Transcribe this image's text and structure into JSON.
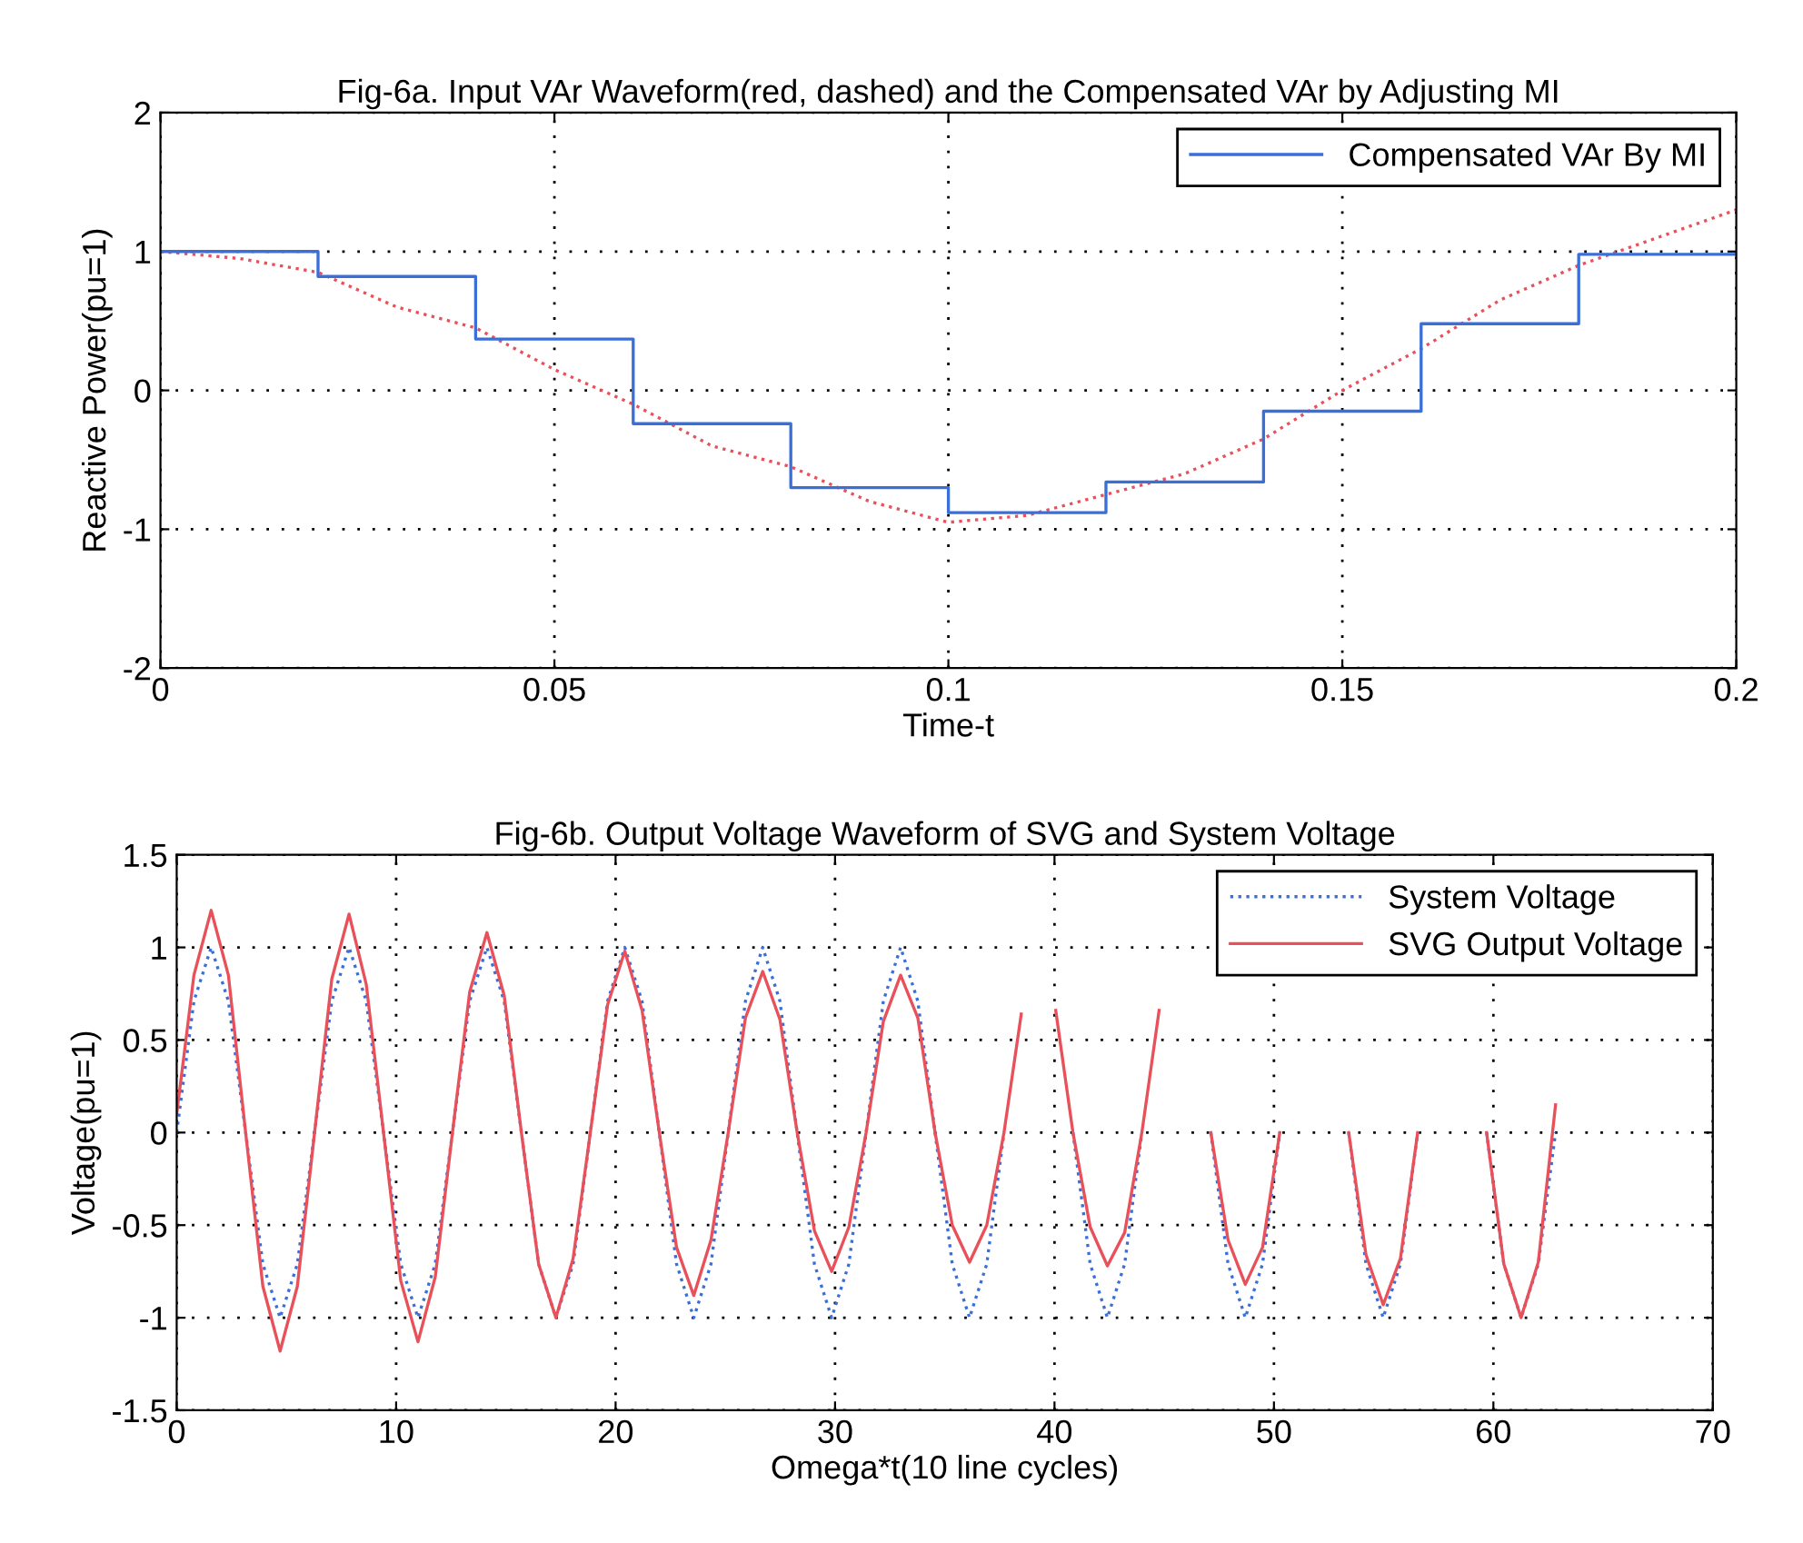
{
  "chart_data": [
    {
      "type": "line",
      "title": "Fig-6a. Input VAr Waveform(red, dashed) and the Compensated VAr by Adjusting MI",
      "xlabel": "Time-t",
      "ylabel": "Reactive Power(pu=1)",
      "xlim": [
        0,
        0.2
      ],
      "xticks": [
        0,
        0.05,
        0.1,
        0.15,
        0.2
      ],
      "ylim": [
        -2,
        2
      ],
      "yticks": [
        -2,
        -1,
        0,
        1,
        2
      ],
      "grid": true,
      "legend": "top right",
      "marker": "none",
      "series": [
        {
          "line_style": "dotted",
          "color": "#e8505a",
          "x": [
            0,
            0.01,
            0.02,
            0.03,
            0.04,
            0.05,
            0.06,
            0.07,
            0.08,
            0.09,
            0.1,
            0.11,
            0.12,
            0.13,
            0.14,
            0.15,
            0.16,
            0.17,
            0.18,
            0.19,
            0.2
          ],
          "values": [
            1.0,
            0.95,
            0.85,
            0.6,
            0.45,
            0.15,
            -0.1,
            -0.4,
            -0.55,
            -0.8,
            -0.95,
            -0.9,
            -0.75,
            -0.6,
            -0.35,
            0.0,
            0.3,
            0.65,
            0.9,
            1.1,
            1.3
          ]
        },
        {
          "type": "step",
          "line_style": "solid",
          "name": "Compensated VAr By MI",
          "color": "#3a6fd8",
          "x": [
            0,
            0.02,
            0.04,
            0.06,
            0.08,
            0.1,
            0.12,
            0.14,
            0.16,
            0.18,
            0.2
          ],
          "values": [
            1.0,
            0.82,
            0.37,
            -0.24,
            -0.7,
            -0.88,
            -0.66,
            -0.15,
            0.48,
            0.98,
            0.98
          ]
        }
      ]
    },
    {
      "type": "line",
      "title": "Fig-6b. Output Voltage Waveform of SVG and System Voltage",
      "xlabel": "Omega*t(10 line cycles)",
      "ylabel": "Voltage(pu=1)",
      "xlim": [
        0,
        70
      ],
      "xticks": [
        0,
        10,
        20,
        30,
        40,
        50,
        60,
        70
      ],
      "ylim": [
        -1.5,
        1.5
      ],
      "yticks": [
        -1.5,
        -1,
        -0.5,
        0,
        0.5,
        1,
        1.5
      ],
      "grid": true,
      "legend": "top right",
      "marker": "none",
      "x": [
        0,
        0.785,
        1.571,
        2.356,
        3.142,
        3.927,
        4.712,
        5.498,
        6.283,
        7.069,
        7.854,
        8.639,
        9.425,
        10.21,
        10.996,
        11.781,
        12.566,
        13.352,
        14.137,
        14.923,
        15.708,
        16.493,
        17.279,
        18.064,
        18.85,
        19.635,
        20.42,
        21.206,
        21.991,
        22.777,
        23.562,
        24.347,
        25.133,
        25.918,
        26.704,
        27.489,
        28.274,
        29.06,
        29.845,
        30.631,
        31.416,
        32.201,
        32.987,
        33.772,
        34.558,
        35.343,
        36.128,
        36.914,
        37.699,
        38.485,
        39.27,
        40.055,
        40.841,
        41.626,
        42.412,
        43.197,
        43.982,
        44.768,
        45.553,
        46.338,
        47.124,
        47.909,
        48.695,
        49.48,
        50.265,
        51.051,
        51.836,
        52.622,
        53.407,
        54.193,
        54.978,
        55.763,
        56.549,
        57.334,
        58.119,
        58.905,
        59.69,
        60.476,
        61.261,
        62.046,
        62.832
      ],
      "series": [
        {
          "line_style": "dotted",
          "name": "System Voltage",
          "color": "#3a6fd8",
          "values": [
            0,
            0.71,
            1,
            0.71,
            0,
            -0.71,
            -1,
            -0.71,
            0,
            0.71,
            1,
            0.71,
            0,
            -0.71,
            -1,
            -0.71,
            0,
            0.71,
            1,
            0.71,
            0,
            -0.71,
            -1,
            -0.71,
            0,
            0.71,
            1,
            0.71,
            0,
            -0.71,
            -1,
            -0.71,
            0,
            0.71,
            1,
            0.71,
            0,
            -0.71,
            -1,
            -0.71,
            0,
            0.71,
            1,
            0.71,
            0,
            -0.71,
            -1,
            -0.71,
            0,
            null,
            null,
            null,
            0,
            -0.71,
            -1,
            -0.71,
            0,
            null,
            null,
            null,
            0,
            -0.71,
            -1,
            -0.71,
            0,
            null,
            null,
            null,
            0,
            -0.71,
            -1,
            -0.71,
            0,
            null,
            null,
            null,
            0,
            -0.71,
            -1,
            -0.71,
            0
          ]
        },
        {
          "line_style": "solid",
          "name": "SVG Output Voltage",
          "color": "#e8505a",
          "values": [
            0.1,
            0.85,
            1.2,
            0.85,
            0,
            -0.83,
            -1.18,
            -0.83,
            0,
            0.83,
            1.18,
            0.8,
            0,
            -0.8,
            -1.13,
            -0.78,
            0,
            0.76,
            1.08,
            0.74,
            0,
            -0.71,
            -1.0,
            -0.68,
            0,
            0.69,
            0.98,
            0.66,
            0,
            -0.62,
            -0.88,
            -0.58,
            0,
            0.62,
            0.87,
            0.61,
            0,
            -0.53,
            -0.75,
            -0.51,
            0,
            0.6,
            0.85,
            0.62,
            0,
            -0.5,
            -0.7,
            -0.5,
            0,
            0.64,
            null,
            0.66,
            0,
            -0.51,
            -0.72,
            -0.54,
            0,
            0.66,
            null,
            null,
            0,
            -0.58,
            -0.82,
            -0.62,
            0,
            null,
            null,
            null,
            0,
            -0.66,
            -0.93,
            -0.68,
            0,
            null,
            null,
            null,
            0,
            -0.71,
            -1.0,
            -0.7,
            0.15
          ]
        }
      ]
    }
  ]
}
